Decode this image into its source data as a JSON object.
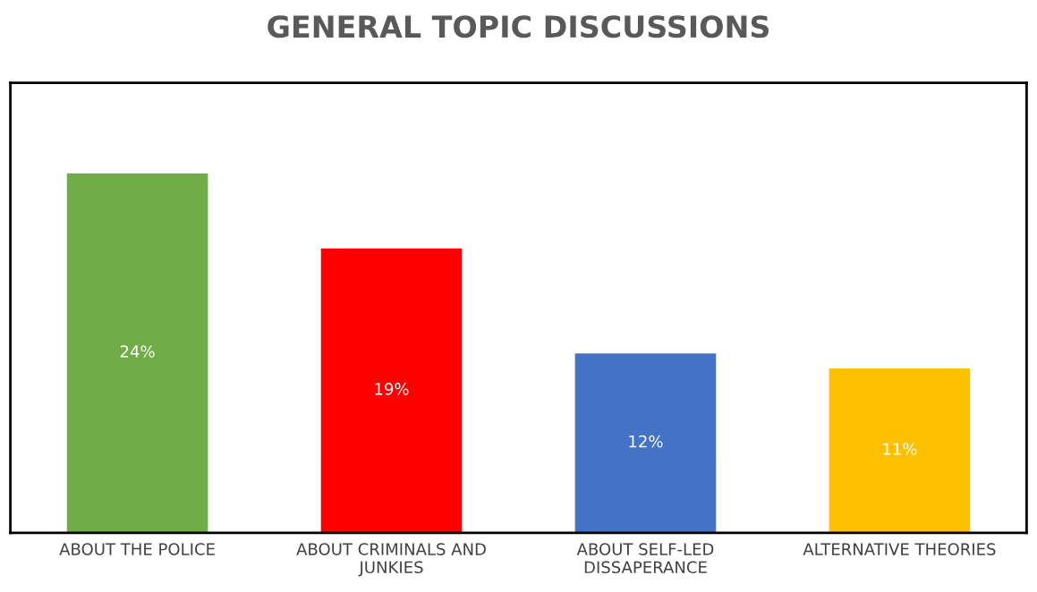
{
  "chart_data": {
    "type": "bar",
    "title": "GENERAL TOPIC DISCUSSIONS",
    "categories": [
      "ABOUT THE POLICE",
      "ABOUT CRIMINALS AND\nJUNKIES",
      "ABOUT SELF-LED\nDISSAPERANCE",
      "ALTERNATIVE THEORIES"
    ],
    "values": [
      24,
      19,
      12,
      11
    ],
    "value_labels": [
      "24%",
      "19%",
      "12%",
      "11%"
    ],
    "colors": [
      "#70ad47",
      "#ff0000",
      "#4472c4",
      "#ffc000"
    ],
    "ylim": [
      0,
      30
    ],
    "tick_labels": "x",
    "grid": false,
    "legend": false
  }
}
